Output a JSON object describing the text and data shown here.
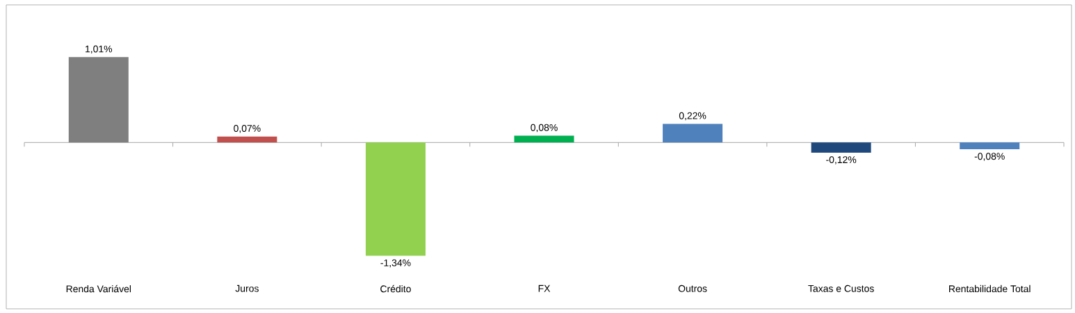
{
  "chart_data": {
    "type": "bar",
    "categories": [
      "Renda Variável",
      "Juros",
      "Crédito",
      "FX",
      "Outros",
      "Taxas e Custos",
      "Rentabilidade Total"
    ],
    "values": [
      1.01,
      0.07,
      -1.34,
      0.08,
      0.22,
      -0.12,
      -0.08
    ],
    "colors": [
      "#7f7f7f",
      "#c0504d",
      "#92d050",
      "#00b050",
      "#4f81bd",
      "#1f497d",
      "#4f81bd"
    ],
    "value_labels": [
      "1,01%",
      "0,07%",
      "-1,34%",
      "0,08%",
      "0,22%",
      "-0,12%",
      "-0,08%"
    ]
  }
}
